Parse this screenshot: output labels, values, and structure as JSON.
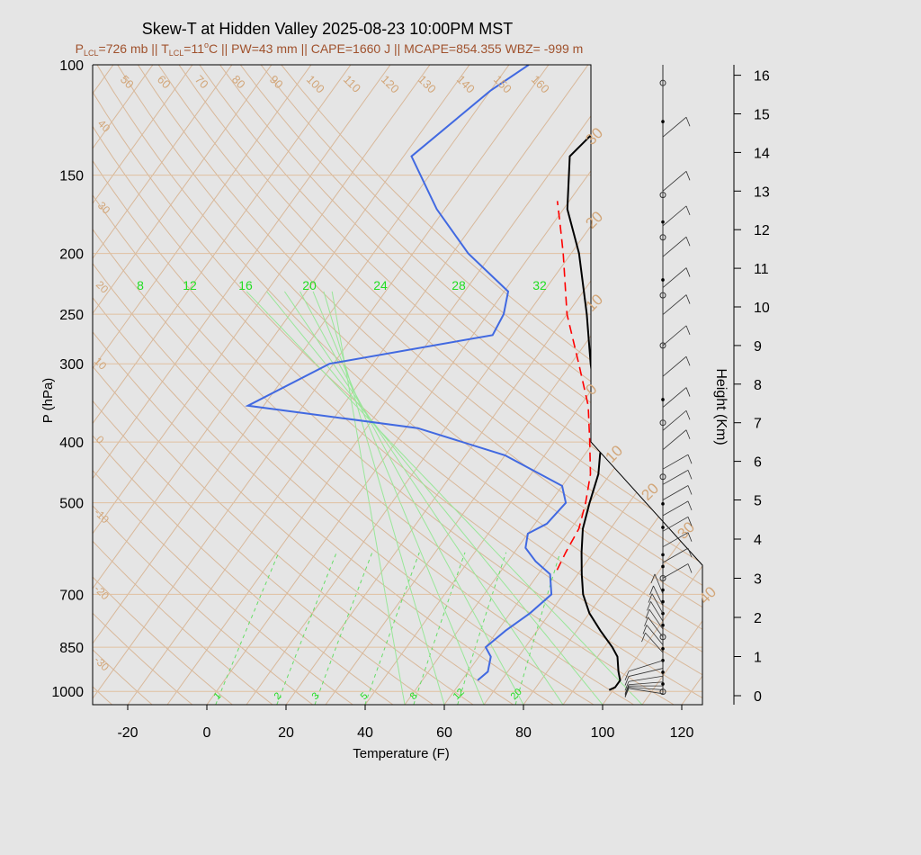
{
  "chart_data": {
    "type": "line",
    "title": "Skew-T at Hidden Valley 2025-08-23 10:00PM MST",
    "subtitle_parts": {
      "p_lcl_label": "P",
      "p_lcl_sub": "LCL",
      "p_lcl_value": "=726 mb || ",
      "t_lcl_label": "T",
      "t_lcl_sub": "LCL",
      "t_lcl_value": "=11",
      "t_lcl_deg": "o",
      "t_lcl_unit": "C || PW=43 mm || CAPE=1660 J || MCAPE=854.355 WBZ= -999 m"
    },
    "xlabel": "Temperature (F)",
    "ylabel": "P (hPa)",
    "y2label": "Height (Km)",
    "x_ticks": [
      "-20",
      "0",
      "20",
      "40",
      "60",
      "80",
      "100",
      "120"
    ],
    "x_tick_values": [
      -20,
      0,
      20,
      40,
      60,
      80,
      100,
      120
    ],
    "p_ticks": [
      "100",
      "150",
      "200",
      "250",
      "300",
      "400",
      "500",
      "700",
      "850",
      "1000"
    ],
    "p_tick_values": [
      100,
      150,
      200,
      250,
      300,
      400,
      500,
      700,
      850,
      1000
    ],
    "height_ticks": [
      "0",
      "1",
      "2",
      "3",
      "4",
      "5",
      "6",
      "7",
      "8",
      "9",
      "10",
      "11",
      "12",
      "13",
      "14",
      "15",
      "16"
    ],
    "height_tick_values": [
      0,
      1,
      2,
      3,
      4,
      5,
      6,
      7,
      8,
      9,
      10,
      11,
      12,
      13,
      14,
      15,
      16
    ],
    "isotherm_labels": [
      "50",
      "60",
      "70",
      "80",
      "90",
      "100",
      "110",
      "120",
      "130",
      "140",
      "150",
      "160"
    ],
    "isotherm_left_labels": [
      "40",
      "30",
      "20",
      "10",
      "0",
      "-10",
      "-20",
      "-30"
    ],
    "adiabat_labels": [
      "30",
      "20",
      "10",
      "0",
      "10",
      "20",
      "30",
      "40"
    ],
    "mixing_ratio_top_labels": [
      "8",
      "12",
      "16",
      "20",
      "24",
      "28",
      "32"
    ],
    "mixing_ratio_bottom_labels": [
      "1",
      "2",
      "3",
      "5",
      "8",
      "12",
      "20"
    ],
    "series": [
      {
        "name": "",
        "kind": "temperature",
        "color": "#000000",
        "p": [
          995,
          985,
          960,
          930,
          880,
          850,
          800,
          750,
          700,
          650,
          600,
          550,
          500,
          450,
          420,
          400,
          350,
          300,
          250,
          200,
          170,
          140,
          120,
          100
        ],
        "t_f": [
          99,
          100,
          100,
          98,
          95,
          92,
          86,
          80,
          75,
          71,
          67,
          63,
          60,
          57,
          54,
          52,
          44,
          35,
          25,
          12,
          1,
          -8,
          -5,
          4
        ]
      },
      {
        "name": "",
        "kind": "dewpoint",
        "color": "#4169e1",
        "p": [
          960,
          930,
          880,
          850,
          800,
          750,
          700,
          650,
          620,
          590,
          560,
          540,
          500,
          470,
          420,
          380,
          350,
          300,
          270,
          250,
          230,
          200,
          170,
          140,
          110,
          100
        ],
        "t_f": [
          64,
          65,
          63,
          60,
          62,
          65,
          67,
          63,
          57,
          52,
          50,
          53,
          54,
          50,
          30,
          3,
          -44,
          -31,
          5,
          4,
          1,
          -16,
          -32,
          -48,
          -40,
          -35
        ]
      },
      {
        "name": "",
        "kind": "parcel",
        "color": "#ff0000",
        "dashed": true,
        "p": [
          640,
          600,
          550,
          500,
          450,
          400,
          350,
          300,
          250,
          200,
          180,
          165
        ],
        "t_f": [
          64,
          63,
          62,
          59,
          55,
          49,
          42,
          32,
          20,
          8,
          2,
          -3
        ]
      }
    ],
    "wind_heights_km": [
      0.05,
      0.15,
      0.25,
      0.35,
      0.5,
      0.7,
      0.9,
      1.1,
      1.3,
      1.5,
      1.7,
      1.9,
      2.1,
      2.3,
      2.6,
      3.0,
      3.4,
      3.8,
      4.2,
      4.6,
      5.0,
      5.4,
      5.8,
      6.3,
      6.8,
      7.4,
      8.2,
      9.0,
      9.8,
      10.5,
      11.3,
      12.1,
      13.0,
      14.4
    ],
    "levels_km_open": [
      0.1,
      1.5,
      3.0,
      5.6,
      7.0,
      9.0,
      10.3,
      11.8,
      12.9,
      15.8
    ],
    "levels_km_dot": [
      0.3,
      0.6,
      0.9,
      1.2,
      1.8,
      2.1,
      2.4,
      2.7,
      3.3,
      3.6,
      4.3,
      4.9,
      7.6,
      10.7,
      12.2,
      14.8
    ]
  }
}
